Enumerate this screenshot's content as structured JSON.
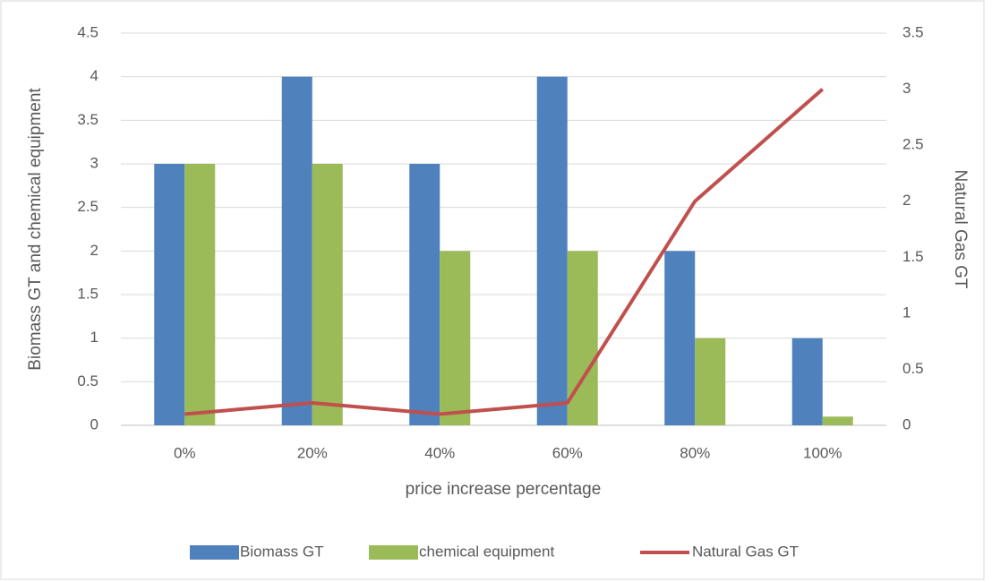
{
  "chart_data": {
    "type": "bar",
    "x_label": "price increase percentage",
    "y_label": "Biomass GT and chemical equipment",
    "y2_label": "Natural Gas GT",
    "categories": [
      "0%",
      "20%",
      "40%",
      "60%",
      "80%",
      "100%"
    ],
    "series": [
      {
        "name": "Biomass GT",
        "color": "#4f81bd",
        "values": [
          3,
          4,
          3,
          4,
          2,
          1
        ]
      },
      {
        "name": "chemical equipment",
        "color": "#9bbb59",
        "values": [
          3,
          3,
          2,
          2,
          1,
          0.1
        ]
      },
      {
        "name": "Natural Gas GT",
        "color": "#c0504d",
        "type": "line",
        "axis": "y2",
        "values": [
          0.1,
          0.2,
          0.1,
          0.2,
          2,
          3
        ]
      }
    ],
    "ylim": [
      0,
      4.5
    ],
    "yticks": [
      0,
      0.5,
      1,
      1.5,
      2,
      2.5,
      3,
      3.5,
      4,
      4.5
    ],
    "y2lim": [
      0,
      3.5
    ],
    "y2ticks": [
      0,
      0.5,
      1,
      1.5,
      2,
      2.5,
      3,
      3.5
    ],
    "grid": true,
    "legend": "bottom"
  }
}
